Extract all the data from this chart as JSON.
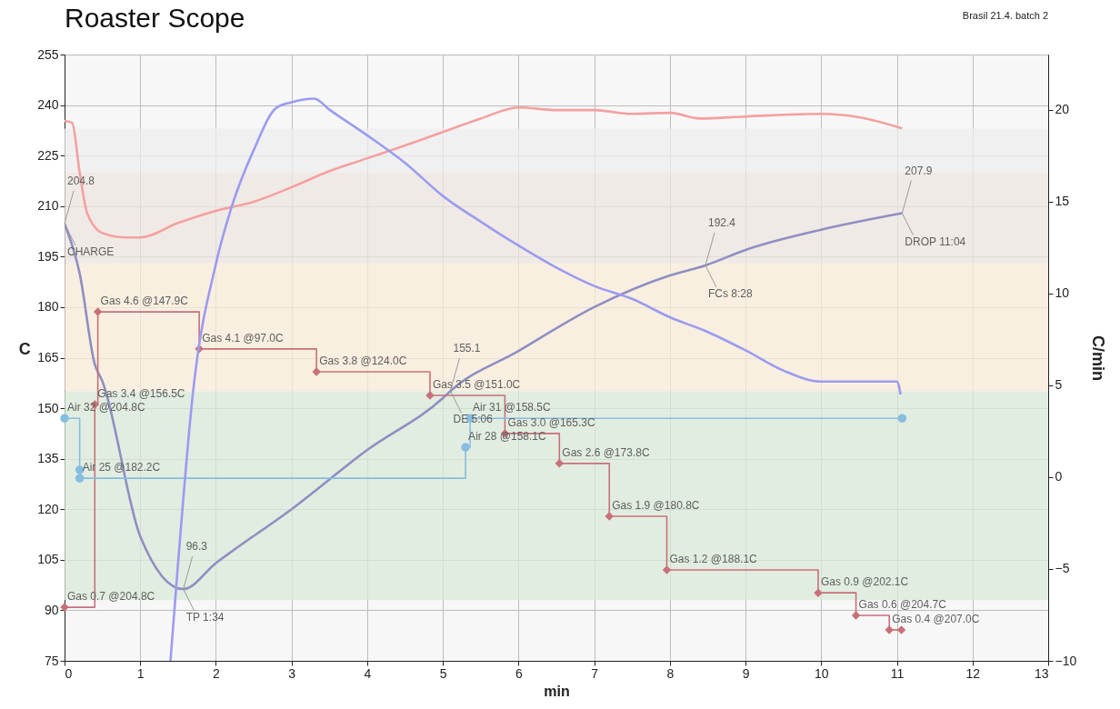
{
  "chart_data": {
    "type": "line",
    "title": "Roaster Scope",
    "xlabel": "min",
    "ylabel": "C",
    "y2label": "C/min",
    "xlim": [
      0,
      13
    ],
    "xticks": [
      0,
      1,
      2,
      3,
      4,
      5,
      6,
      7,
      8,
      9,
      10,
      11,
      12,
      13
    ],
    "ylim": [
      75,
      255
    ],
    "yticks": [
      75,
      90,
      105,
      120,
      135,
      150,
      165,
      180,
      195,
      210,
      225,
      240,
      255
    ],
    "y2lim": [
      -10,
      23
    ],
    "y2ticks": [
      -10,
      -5,
      0,
      5,
      10,
      15,
      20
    ],
    "grid": true,
    "bands": [
      {
        "axis": "y",
        "from": 93,
        "to": 155,
        "color": "#dbe9d9"
      },
      {
        "axis": "y",
        "from": 155,
        "to": 193,
        "color": "#f9ecda"
      },
      {
        "axis": "y",
        "from": 193,
        "to": 220,
        "color": "#ede6e0"
      },
      {
        "axis": "y",
        "from": 220,
        "to": 233,
        "color": "#ededed"
      }
    ],
    "series": [
      {
        "type": "line",
        "color": "#f5a0a0",
        "x": [
          0,
          0.1,
          0.2,
          0.3,
          0.5,
          0.8,
          1,
          1.5,
          2,
          2.5,
          3,
          3.5,
          4,
          4.5,
          5,
          5.5,
          6,
          6.5,
          7,
          7.5,
          8,
          8.4,
          9,
          10,
          10.5,
          11.07
        ],
        "values": [
          235.3,
          234.7,
          220,
          207.8,
          202,
          200.7,
          200.7,
          205,
          208.6,
          211.3,
          215.6,
          220.4,
          224.2,
          228,
          232,
          236,
          239.3,
          238.5,
          238.5,
          237.4,
          237.7,
          236,
          236.6,
          237.4,
          236.4,
          233.1
        ]
      },
      {
        "type": "line",
        "color": "#8e8fc2",
        "x": [
          0,
          0.2,
          0.4,
          0.5,
          1,
          1.57,
          2,
          3,
          4,
          5,
          5.1,
          6,
          7,
          8,
          8.47,
          9,
          10,
          11.07
        ],
        "values": [
          204.8,
          190,
          163,
          158,
          112,
          96.3,
          104,
          120,
          137.6,
          153,
          155.1,
          167,
          180,
          189.4,
          192.4,
          197,
          203,
          207.9
        ]
      },
      {
        "type": "line",
        "color": "#9b9bf0",
        "axis": "y2",
        "x": [
          1.4,
          1.5,
          1.7,
          2,
          2.2,
          2.5,
          2.8,
          3,
          3.3,
          3.5,
          4,
          4.5,
          5,
          5.5,
          6,
          6.5,
          7,
          7.5,
          8,
          8.5,
          9,
          9.5,
          10,
          10.5,
          11,
          11.05
        ],
        "values": [
          -10,
          -4.7,
          4.7,
          11.6,
          14.6,
          17.8,
          20.1,
          20.4,
          20.6,
          20,
          18.6,
          17.1,
          15.3,
          13.9,
          12.6,
          11.4,
          10.4,
          9.7,
          8.7,
          7.9,
          6.9,
          5.8,
          5.2,
          5.2,
          5.2,
          4.5
        ]
      },
      {
        "type": "step",
        "color": "#c8707a",
        "marker": "diamond",
        "x": [
          0,
          0.4,
          0.44,
          1.78,
          3.33,
          4.83,
          5.82,
          6.54,
          7.2,
          7.96,
          9.96,
          10.46,
          10.9,
          11.06
        ],
        "values": [
          90.9,
          151.1,
          178.6,
          167.6,
          160.8,
          153.8,
          142.5,
          133.6,
          117.9,
          102,
          95.2,
          88.5,
          84.2,
          84.2
        ]
      },
      {
        "type": "step",
        "color": "#86bde0",
        "marker": "circle",
        "x": [
          0,
          0.2,
          0.2,
          5.3,
          5.36,
          11.07
        ],
        "values": [
          147,
          131.7,
          129.2,
          138.4,
          147,
          147
        ]
      }
    ],
    "annotations": [
      "Brasil 21.4. batch 2",
      {
        "text": "204.8",
        "x": 0,
        "y": 204.8
      },
      {
        "text": "CHARGE",
        "x": 0,
        "y": 204.8
      },
      {
        "text": "96.3",
        "x": 1.57,
        "y": 96.3
      },
      {
        "text": "TP 1:34",
        "x": 1.57,
        "y": 96.3
      },
      {
        "text": "155.1",
        "x": 5.1,
        "y": 155.1
      },
      {
        "text": "DE 5:06",
        "x": 5.1,
        "y": 155.1
      },
      {
        "text": "192.4",
        "x": 8.47,
        "y": 192.4
      },
      {
        "text": "FCs 8:28",
        "x": 8.47,
        "y": 192.4
      },
      {
        "text": "207.9",
        "x": 11.07,
        "y": 207.9
      },
      {
        "text": "DROP 11:04",
        "x": 11.07,
        "y": 207.9
      },
      {
        "text": "Gas 0.7 @204.8C",
        "x": 0,
        "y": 90.9
      },
      {
        "text": "Gas 3.4 @156.5C",
        "x": 0.4,
        "y": 151.1
      },
      {
        "text": "Gas 4.6 @147.9C",
        "x": 0.44,
        "y": 178.6
      },
      {
        "text": "Gas 4.1 @97.0C",
        "x": 1.78,
        "y": 167.6
      },
      {
        "text": "Gas 3.8 @124.0C",
        "x": 3.33,
        "y": 160.8
      },
      {
        "text": "Gas 3.5 @151.0C",
        "x": 4.83,
        "y": 153.8
      },
      {
        "text": "Gas 3.0 @165.3C",
        "x": 5.82,
        "y": 142.5
      },
      {
        "text": "Gas 2.6 @173.8C",
        "x": 6.54,
        "y": 133.6
      },
      {
        "text": "Gas 1.9 @180.8C",
        "x": 7.2,
        "y": 117.9
      },
      {
        "text": "Gas 1.2 @188.1C",
        "x": 7.96,
        "y": 102
      },
      {
        "text": "Gas 0.9 @202.1C",
        "x": 9.96,
        "y": 95.2
      },
      {
        "text": "Gas 0.6 @204.7C",
        "x": 10.46,
        "y": 88.5
      },
      {
        "text": "Gas 0.4 @207.0C",
        "x": 10.9,
        "y": 84.2
      },
      {
        "text": "Air 32 @204.8C",
        "x": 0,
        "y": 147
      },
      {
        "text": "Air 25 @182.2C",
        "x": 0.2,
        "y": 129.2
      },
      {
        "text": "Air 28 @158.1C",
        "x": 5.3,
        "y": 138.4
      },
      {
        "text": "Air 31 @158.5C",
        "x": 5.36,
        "y": 147
      }
    ]
  }
}
